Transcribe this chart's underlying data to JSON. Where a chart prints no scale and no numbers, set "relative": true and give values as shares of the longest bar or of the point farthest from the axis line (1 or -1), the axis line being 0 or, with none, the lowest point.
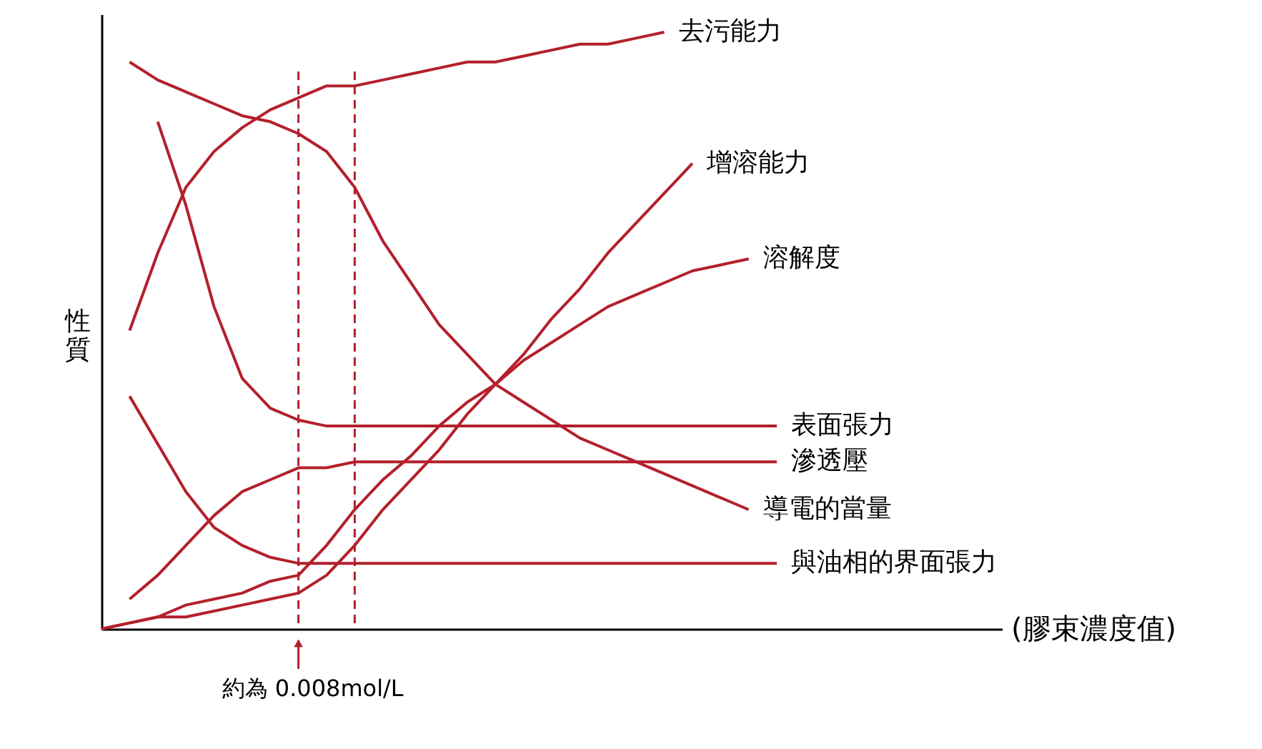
{
  "chart_data": {
    "type": "line",
    "relative": true,
    "xlabel": "(膠束濃度值)",
    "ylabel": "性質",
    "tick_labels": false,
    "grid": false,
    "legend": false,
    "marker": "none",
    "line_style": "solid",
    "categories": [
      null,
      null,
      null,
      null,
      null,
      null,
      null,
      null,
      null,
      null,
      null,
      null,
      null,
      null,
      null,
      null,
      null,
      null,
      null,
      null,
      null,
      null,
      null,
      null,
      null,
      null,
      null,
      null,
      null,
      null,
      null,
      null,
      null
    ],
    "series": [
      {
        "name": "去污能力",
        "color": "#b3202c",
        "values": [
          null,
          0.5,
          0.63,
          0.74,
          0.8,
          0.84,
          0.87,
          0.89,
          0.91,
          0.91,
          0.92,
          0.93,
          0.94,
          0.95,
          0.95,
          0.96,
          0.97,
          0.98,
          0.98,
          0.99,
          1.0,
          null,
          null,
          null,
          null,
          null,
          null,
          null,
          null,
          null,
          null,
          null,
          null
        ]
      },
      {
        "name": "增溶能力",
        "color": "#b3202c",
        "values": [
          0,
          0.01,
          0.02,
          0.02,
          0.03,
          0.04,
          0.05,
          0.06,
          0.09,
          0.14,
          0.2,
          0.25,
          0.3,
          0.36,
          0.41,
          0.46,
          0.52,
          0.57,
          0.63,
          0.68,
          0.73,
          0.78,
          null,
          null,
          null,
          null,
          null,
          null,
          null,
          null,
          null,
          null,
          null
        ]
      },
      {
        "name": "溶解度",
        "color": "#b3202c",
        "values": [
          0,
          0.01,
          0.02,
          0.04,
          0.05,
          0.06,
          0.08,
          0.09,
          0.14,
          0.2,
          0.25,
          0.29,
          0.34,
          0.38,
          0.41,
          0.45,
          0.48,
          0.51,
          0.54,
          0.56,
          0.58,
          0.6,
          0.61,
          0.62,
          null,
          null,
          null,
          null,
          null,
          null,
          null,
          null,
          null
        ]
      },
      {
        "name": "表面張力",
        "color": "#b3202c",
        "values": [
          null,
          null,
          0.85,
          0.71,
          0.54,
          0.42,
          0.37,
          0.35,
          0.34,
          0.34,
          0.34,
          0.34,
          0.34,
          0.34,
          0.34,
          0.34,
          0.34,
          0.34,
          0.34,
          0.34,
          0.34,
          0.34,
          0.34,
          0.34,
          0.34,
          null,
          null,
          null,
          null,
          null,
          null,
          null,
          null
        ]
      },
      {
        "name": "滲透壓",
        "color": "#b3202c",
        "values": [
          null,
          0.05,
          0.09,
          0.14,
          0.19,
          0.23,
          0.25,
          0.27,
          0.27,
          0.28,
          0.28,
          0.28,
          0.28,
          0.28,
          0.28,
          0.28,
          0.28,
          0.28,
          0.28,
          0.28,
          0.28,
          0.28,
          0.28,
          0.28,
          0.28,
          null,
          null,
          null,
          null,
          null,
          null,
          null,
          null
        ]
      },
      {
        "name": "導電的當量",
        "color": "#b3202c",
        "values": [
          null,
          0.95,
          0.92,
          0.9,
          0.88,
          0.86,
          0.85,
          0.83,
          0.8,
          0.74,
          0.65,
          0.58,
          0.51,
          0.46,
          0.41,
          0.38,
          0.35,
          0.32,
          0.3,
          0.28,
          0.26,
          0.24,
          0.22,
          0.2,
          null,
          null,
          null,
          null,
          null,
          null,
          null,
          null,
          null
        ]
      },
      {
        "name": "與油相的界面張力",
        "color": "#b3202c",
        "values": [
          null,
          0.39,
          0.31,
          0.23,
          0.17,
          0.14,
          0.12,
          0.11,
          0.11,
          0.11,
          0.11,
          0.11,
          0.11,
          0.11,
          0.11,
          0.11,
          0.11,
          0.11,
          0.11,
          0.11,
          0.11,
          0.11,
          0.11,
          0.11,
          0.11,
          null,
          null,
          null,
          null,
          null,
          null,
          null,
          null
        ]
      }
    ],
    "annotations": [
      "約為 0.008mol/L"
    ]
  }
}
